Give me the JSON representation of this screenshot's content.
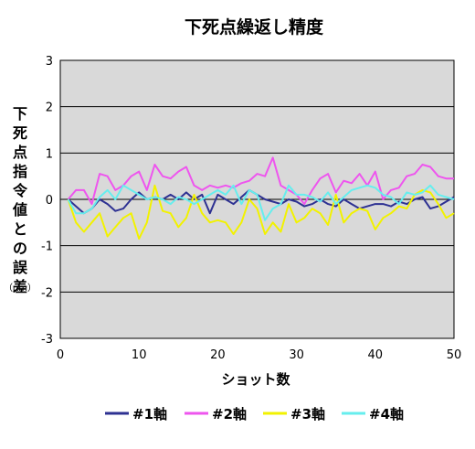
{
  "chart_data": {
    "type": "line",
    "title": "下死点繰返し精度",
    "xlabel": "ショット数",
    "ylabel": "下死点指令値との誤差",
    "yunit": "（μm）",
    "xlim": [
      0,
      50
    ],
    "ylim": [
      -3,
      3
    ],
    "xticks": [
      "0",
      "10",
      "20",
      "30",
      "40",
      "50"
    ],
    "yticks": [
      "3",
      "2",
      "1",
      "0",
      "-1",
      "-2",
      "-3"
    ],
    "grid": "horizontal",
    "legend_position": "bottom",
    "plot_background": "#d9d9d9",
    "x": [
      1,
      2,
      3,
      4,
      5,
      6,
      7,
      8,
      9,
      10,
      11,
      12,
      13,
      14,
      15,
      16,
      17,
      18,
      19,
      20,
      21,
      22,
      23,
      24,
      25,
      26,
      27,
      28,
      29,
      30,
      31,
      32,
      33,
      34,
      35,
      36,
      37,
      38,
      39,
      40,
      41,
      42,
      43,
      44,
      45,
      46,
      47,
      48,
      49,
      50
    ],
    "series": [
      {
        "name": "#1軸",
        "color": "#2e3192",
        "values": [
          0.0,
          -0.15,
          -0.3,
          -0.2,
          0.0,
          -0.1,
          -0.25,
          -0.2,
          0.0,
          0.15,
          0.0,
          0.05,
          0.0,
          0.1,
          0.0,
          0.15,
          0.0,
          0.1,
          -0.3,
          0.1,
          0.0,
          -0.1,
          0.05,
          0.2,
          0.1,
          0.0,
          -0.05,
          -0.1,
          0.0,
          -0.05,
          -0.15,
          -0.1,
          0.0,
          -0.1,
          -0.15,
          0.0,
          -0.1,
          -0.2,
          -0.15,
          -0.1,
          -0.1,
          -0.15,
          -0.05,
          -0.1,
          0.0,
          0.05,
          -0.2,
          -0.15,
          -0.05,
          0.05
        ]
      },
      {
        "name": "#2軸",
        "color": "#ee55ee",
        "values": [
          0.0,
          0.2,
          0.2,
          -0.1,
          0.55,
          0.5,
          0.2,
          0.3,
          0.5,
          0.6,
          0.2,
          0.75,
          0.5,
          0.45,
          0.6,
          0.7,
          0.3,
          0.2,
          0.3,
          0.25,
          0.3,
          0.25,
          0.35,
          0.4,
          0.55,
          0.5,
          0.9,
          0.3,
          0.2,
          0.1,
          -0.1,
          0.2,
          0.45,
          0.55,
          0.15,
          0.4,
          0.35,
          0.55,
          0.3,
          0.6,
          0.0,
          0.2,
          0.25,
          0.5,
          0.55,
          0.75,
          0.7,
          0.5,
          0.45,
          0.45
        ]
      },
      {
        "name": "#3軸",
        "color": "#f2f200",
        "values": [
          0.0,
          -0.5,
          -0.7,
          -0.5,
          -0.3,
          -0.8,
          -0.6,
          -0.4,
          -0.3,
          -0.85,
          -0.5,
          0.3,
          -0.25,
          -0.3,
          -0.6,
          -0.4,
          0.1,
          -0.3,
          -0.5,
          -0.45,
          -0.5,
          -0.75,
          -0.5,
          0.0,
          -0.2,
          -0.75,
          -0.5,
          -0.7,
          -0.1,
          -0.5,
          -0.4,
          -0.2,
          -0.3,
          -0.55,
          0.1,
          -0.5,
          -0.3,
          -0.2,
          -0.25,
          -0.65,
          -0.4,
          -0.3,
          -0.15,
          -0.2,
          0.1,
          0.2,
          0.15,
          -0.1,
          -0.4,
          -0.3
        ]
      },
      {
        "name": "#4軸",
        "color": "#66eeee",
        "values": [
          0.0,
          -0.3,
          -0.3,
          -0.2,
          0.05,
          0.2,
          0.0,
          0.3,
          0.2,
          0.1,
          0.0,
          0.05,
          0.0,
          -0.1,
          0.05,
          0.0,
          -0.1,
          0.0,
          0.1,
          0.2,
          0.1,
          0.3,
          -0.1,
          0.2,
          0.1,
          -0.45,
          -0.2,
          -0.1,
          0.3,
          0.1,
          0.1,
          0.05,
          -0.05,
          0.15,
          -0.1,
          0.05,
          0.2,
          0.25,
          0.3,
          0.25,
          0.1,
          0.05,
          -0.1,
          0.15,
          0.1,
          0.15,
          0.3,
          0.1,
          0.05,
          0.0
        ]
      }
    ]
  }
}
